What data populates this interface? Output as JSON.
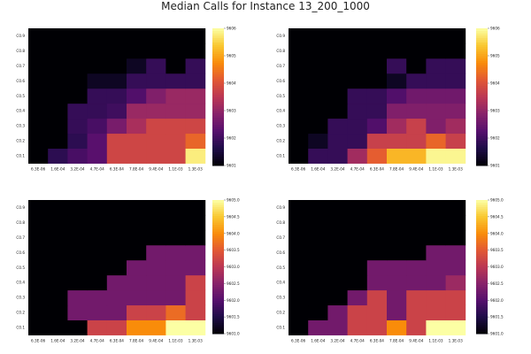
{
  "title": "Median Calls for Instance 13_200_1000",
  "chart_data": [
    {
      "type": "heatmap",
      "x_categories": [
        "6.3E-06",
        "1.6E-04",
        "3.2E-04",
        "4.7E-04",
        "6.3E-04",
        "7.8E-04",
        "9.4E-04",
        "1.1E-03",
        "1.3E-03"
      ],
      "y_categories": [
        "C0.1",
        "C0.2",
        "C0.3",
        "C0.4",
        "C0.5",
        "C0.6",
        "C0.7",
        "C0.8",
        "C0.9"
      ],
      "colorbar": {
        "min": 9601,
        "max": 9606,
        "ticks": [
          "9601",
          "9602",
          "9603",
          "9604",
          "9605",
          "9606"
        ]
      },
      "values": [
        [
          9601.0,
          9601.8,
          9602.1,
          9602.3,
          9603.8,
          9603.8,
          9603.8,
          9603.8,
          9605.8
        ],
        [
          9601.0,
          9601.0,
          9601.8,
          9602.3,
          9603.8,
          9603.8,
          9603.8,
          9603.8,
          9604.3
        ],
        [
          9601.0,
          9601.0,
          9601.9,
          9602.1,
          9602.7,
          9603.3,
          9603.8,
          9603.8,
          9603.8
        ],
        [
          9601.0,
          9601.0,
          9601.9,
          9601.9,
          9602.0,
          9603.1,
          9603.1,
          9603.1,
          9603.1
        ],
        [
          9601.0,
          9601.0,
          9601.0,
          9601.9,
          9601.9,
          9602.2,
          9602.8,
          9603.1,
          9603.1
        ],
        [
          9601.0,
          9601.0,
          9601.0,
          9601.3,
          9601.3,
          9601.9,
          9601.9,
          9601.9,
          9601.9
        ],
        [
          9601.0,
          9601.0,
          9601.0,
          9601.0,
          9601.0,
          9601.3,
          9601.9,
          9601.0,
          9601.9
        ],
        [
          9601.0,
          9601.0,
          9601.0,
          9601.0,
          9601.0,
          9601.0,
          9601.0,
          9601.0,
          9601.0
        ],
        [
          9601.0,
          9601.0,
          9601.0,
          9601.0,
          9601.0,
          9601.0,
          9601.0,
          9601.0,
          9601.0
        ]
      ]
    },
    {
      "type": "heatmap",
      "x_categories": [
        "6.3E-06",
        "1.6E-04",
        "3.2E-04",
        "4.7E-04",
        "6.3E-04",
        "7.8E-04",
        "9.4E-04",
        "1.1E-03",
        "1.3E-03"
      ],
      "y_categories": [
        "C0.1",
        "C0.2",
        "C0.3",
        "C0.4",
        "C0.5",
        "C0.6",
        "C0.7",
        "C0.8",
        "C0.9"
      ],
      "colorbar": {
        "min": 9601,
        "max": 9606,
        "ticks": [
          "9601",
          "9602",
          "9603",
          "9604",
          "9605",
          "9606"
        ]
      },
      "values": [
        [
          9601.0,
          9601.9,
          9601.9,
          9603.2,
          9604.2,
          9605.2,
          9605.2,
          9605.9,
          9605.9
        ],
        [
          9601.0,
          9601.3,
          9601.9,
          9601.9,
          9603.7,
          9603.7,
          9603.7,
          9604.3,
          9603.7
        ],
        [
          9601.0,
          9601.0,
          9601.9,
          9601.9,
          9602.2,
          9603.2,
          9603.7,
          9602.8,
          9603.2
        ],
        [
          9601.0,
          9601.0,
          9601.0,
          9601.9,
          9601.9,
          9602.8,
          9602.8,
          9602.8,
          9602.8
        ],
        [
          9601.0,
          9601.0,
          9601.0,
          9601.9,
          9601.9,
          9602.2,
          9602.6,
          9602.6,
          9602.6
        ],
        [
          9601.0,
          9601.0,
          9601.0,
          9601.0,
          9601.0,
          9601.3,
          9601.9,
          9601.9,
          9601.9
        ],
        [
          9601.0,
          9601.0,
          9601.0,
          9601.0,
          9601.0,
          9601.9,
          9601.0,
          9601.9,
          9601.9
        ],
        [
          9601.0,
          9601.0,
          9601.0,
          9601.0,
          9601.0,
          9601.0,
          9601.0,
          9601.0,
          9601.0
        ],
        [
          9601.0,
          9601.0,
          9601.0,
          9601.0,
          9601.0,
          9601.0,
          9601.0,
          9601.0,
          9601.0
        ]
      ]
    },
    {
      "type": "heatmap",
      "x_categories": [
        "6.3E-06",
        "1.6E-04",
        "3.2E-04",
        "4.7E-04",
        "6.3E-04",
        "7.8E-04",
        "9.4E-04",
        "1.1E-03",
        "1.3E-03"
      ],
      "y_categories": [
        "C0.1",
        "C0.2",
        "C0.3",
        "C0.4",
        "C0.5",
        "C0.6",
        "C0.7",
        "C0.8",
        "C0.9"
      ],
      "colorbar": {
        "min": 9601,
        "max": 9605,
        "ticks": [
          "9601.0",
          "9601.5",
          "9602.0",
          "9602.5",
          "9603.0",
          "9603.5",
          "9604.0",
          "9604.5",
          "9605.0"
        ]
      },
      "values": [
        [
          9601.0,
          9601.0,
          9601.0,
          9603.2,
          9603.2,
          9604.0,
          9604.0,
          9605.0,
          9605.0
        ],
        [
          9601.0,
          9601.0,
          9602.3,
          9602.3,
          9602.3,
          9603.2,
          9603.2,
          9603.7,
          9603.2
        ],
        [
          9601.0,
          9601.0,
          9602.3,
          9602.3,
          9602.3,
          9602.3,
          9602.3,
          9602.3,
          9603.2
        ],
        [
          9601.0,
          9601.0,
          9601.0,
          9601.0,
          9602.3,
          9602.3,
          9602.3,
          9602.3,
          9603.2
        ],
        [
          9601.0,
          9601.0,
          9601.0,
          9601.0,
          9601.0,
          9602.3,
          9602.3,
          9602.3,
          9602.3
        ],
        [
          9601.0,
          9601.0,
          9601.0,
          9601.0,
          9601.0,
          9601.0,
          9602.3,
          9602.3,
          9602.3
        ],
        [
          9601.0,
          9601.0,
          9601.0,
          9601.0,
          9601.0,
          9601.0,
          9601.0,
          9601.0,
          9601.0
        ],
        [
          9601.0,
          9601.0,
          9601.0,
          9601.0,
          9601.0,
          9601.0,
          9601.0,
          9601.0,
          9601.0
        ],
        [
          9601.0,
          9601.0,
          9601.0,
          9601.0,
          9601.0,
          9601.0,
          9601.0,
          9601.0,
          9601.0
        ]
      ]
    },
    {
      "type": "heatmap",
      "x_categories": [
        "6.3E-06",
        "1.6E-04",
        "3.2E-04",
        "4.7E-04",
        "6.3E-04",
        "7.8E-04",
        "9.4E-04",
        "1.1E-03",
        "1.3E-03"
      ],
      "y_categories": [
        "C0.1",
        "C0.2",
        "C0.3",
        "C0.4",
        "C0.5",
        "C0.6",
        "C0.7",
        "C0.8",
        "C0.9"
      ],
      "colorbar": {
        "min": 9601,
        "max": 9605,
        "ticks": [
          "9601.0",
          "9601.5",
          "9602.0",
          "9602.5",
          "9603.0",
          "9603.5",
          "9604.0",
          "9604.5",
          "9605.0"
        ]
      },
      "values": [
        [
          9601.0,
          9602.3,
          9602.3,
          9603.2,
          9603.2,
          9604.0,
          9603.2,
          9605.0,
          9605.0
        ],
        [
          9601.0,
          9601.0,
          9602.3,
          9603.2,
          9603.2,
          9602.3,
          9603.2,
          9603.2,
          9603.2
        ],
        [
          9601.0,
          9601.0,
          9601.0,
          9602.3,
          9603.2,
          9602.3,
          9603.2,
          9603.2,
          9603.2
        ],
        [
          9601.0,
          9601.0,
          9601.0,
          9601.0,
          9602.3,
          9602.3,
          9602.3,
          9602.3,
          9602.7
        ],
        [
          9601.0,
          9601.0,
          9601.0,
          9601.0,
          9602.3,
          9602.3,
          9602.3,
          9602.3,
          9602.3
        ],
        [
          9601.0,
          9601.0,
          9601.0,
          9601.0,
          9601.0,
          9601.0,
          9601.0,
          9602.3,
          9602.3
        ],
        [
          9601.0,
          9601.0,
          9601.0,
          9601.0,
          9601.0,
          9601.0,
          9601.0,
          9601.0,
          9601.0
        ],
        [
          9601.0,
          9601.0,
          9601.0,
          9601.0,
          9601.0,
          9601.0,
          9601.0,
          9601.0,
          9601.0
        ],
        [
          9601.0,
          9601.0,
          9601.0,
          9601.0,
          9601.0,
          9601.0,
          9601.0,
          9601.0,
          9601.0
        ]
      ]
    }
  ]
}
